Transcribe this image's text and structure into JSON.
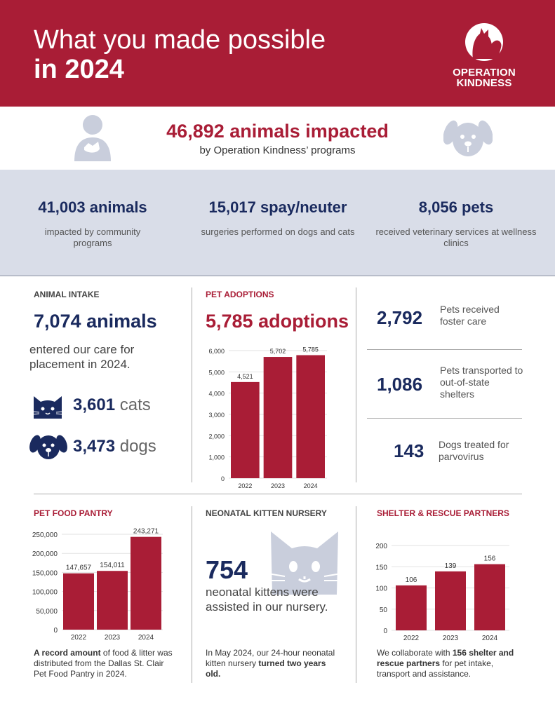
{
  "header": {
    "title_line1": "What you made possible",
    "title_line2": "in 2024",
    "logo_line1": "OPERATION",
    "logo_line2": "KINDNESS"
  },
  "impact": {
    "headline": "46,892 animals impacted",
    "sub": "by Operation Kindness’ programs"
  },
  "stats": [
    {
      "number": "41,003 animals",
      "desc": "impacted by community programs"
    },
    {
      "number": "15,017 spay/neuter",
      "desc": "surgeries performed on dogs and cats"
    },
    {
      "number": "8,056 pets",
      "desc": "received veterinary services at wellness clinics"
    }
  ],
  "intake": {
    "label": "ANIMAL INTAKE",
    "number": "7,074 animals",
    "desc": "entered our care for placement in 2024.",
    "cats_num": "3,601",
    "cats_word": "cats",
    "dogs_num": "3,473",
    "dogs_word": "dogs"
  },
  "adoptions": {
    "label": "PET ADOPTIONS",
    "number": "5,785 adoptions"
  },
  "side_stats": [
    {
      "number": "2,792",
      "desc": "Pets received foster care"
    },
    {
      "number": "1,086",
      "desc": "Pets transported to out-of-state shelters"
    },
    {
      "number": "143",
      "desc": "Dogs treated for parvovirus"
    }
  ],
  "pantry": {
    "label": "PET FOOD PANTRY",
    "caption_bold": "A record amount",
    "caption_rest": " of food & litter was distributed from the Dallas St. Clair Pet Food Pantry in 2024."
  },
  "nursery": {
    "label": "NEONATAL KITTEN NURSERY",
    "number": "754",
    "desc": "neonatal kittens were assisted in our nursery.",
    "caption_start": "In May 2024, our 24-hour neonatal kitten nursery ",
    "caption_bold": "turned two years old."
  },
  "partners": {
    "label": "SHELTER & RESCUE PARTNERS",
    "caption_start": "We collaborate with ",
    "caption_bold": "156 shelter and rescue partners",
    "caption_end": " for pet intake, transport and assistance."
  },
  "colors": {
    "brand_red": "#a91d36",
    "navy": "#1a2a5e",
    "band": "#d9dde8",
    "icon_gray": "#c9cedc"
  },
  "chart_data": [
    {
      "type": "bar",
      "name": "adoptions",
      "categories": [
        "2022",
        "2023",
        "2024"
      ],
      "values": [
        4521,
        5702,
        5785
      ],
      "value_labels": [
        "4,521",
        "5,702",
        "5,785"
      ],
      "yticks": [
        "0",
        "1,000",
        "2,000",
        "3,000",
        "4,000",
        "5,000",
        "6,000"
      ],
      "ylim": [
        0,
        6000
      ]
    },
    {
      "type": "bar",
      "name": "pantry",
      "categories": [
        "2022",
        "2023",
        "2024"
      ],
      "values": [
        147657,
        154011,
        243271
      ],
      "value_labels": [
        "147,657",
        "154,011",
        "243,271"
      ],
      "yticks": [
        "0",
        "50,000",
        "100,000",
        "150,000",
        "200,000",
        "250,000"
      ],
      "ylim": [
        0,
        250000
      ]
    },
    {
      "type": "bar",
      "name": "partners",
      "categories": [
        "2022",
        "2023",
        "2024"
      ],
      "values": [
        106,
        139,
        156
      ],
      "value_labels": [
        "106",
        "139",
        "156"
      ],
      "yticks": [
        "0",
        "50",
        "100",
        "150",
        "200"
      ],
      "ylim": [
        0,
        200
      ]
    }
  ]
}
